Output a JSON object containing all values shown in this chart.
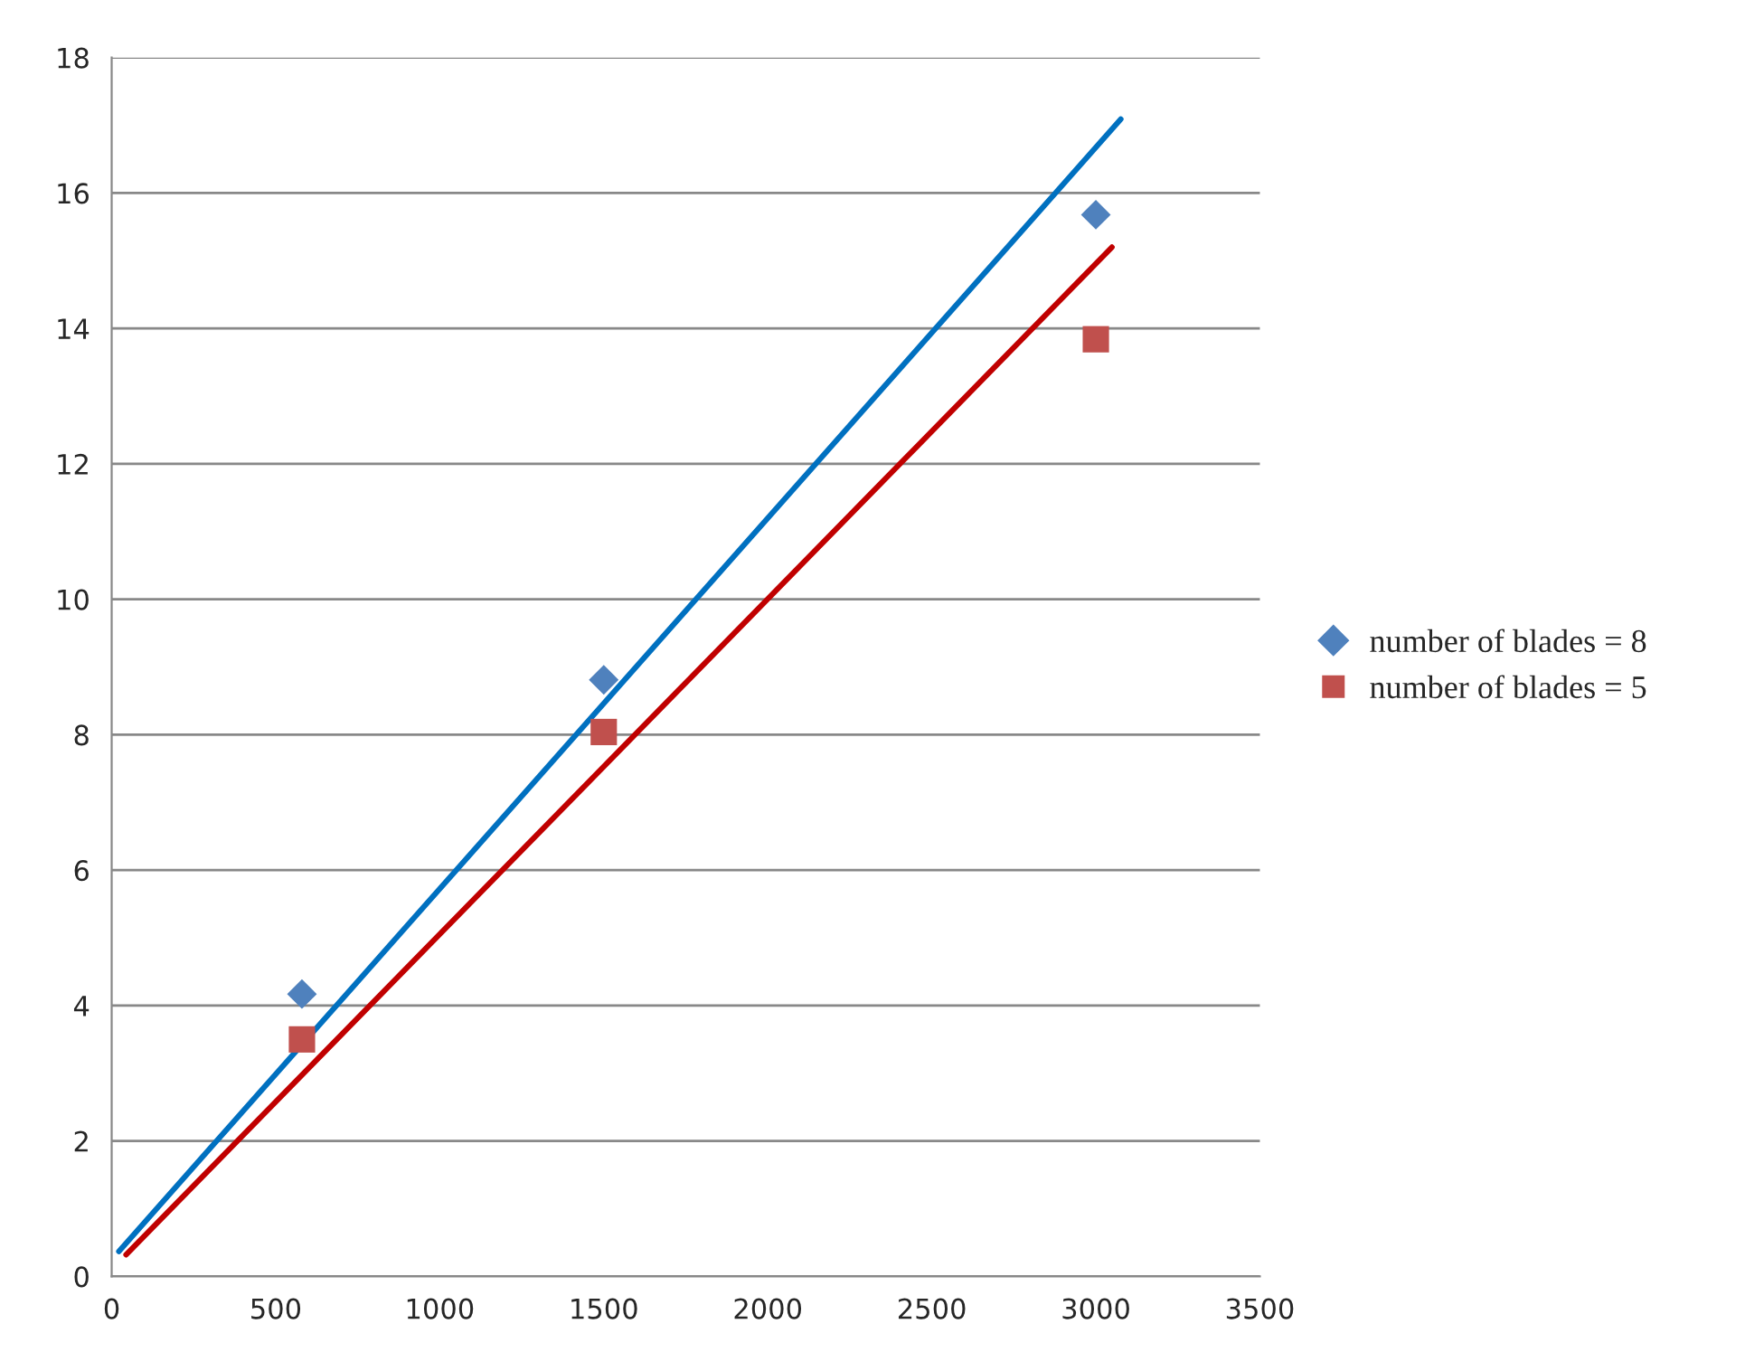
{
  "chart_data": {
    "type": "scatter",
    "series": [
      {
        "name": "number of blades = 8",
        "marker": "diamond",
        "color": "#4f81bd",
        "x": [
          580,
          1500,
          3000
        ],
        "values": [
          4.17,
          8.81,
          15.68
        ]
      },
      {
        "name": "number of blades = 5",
        "marker": "square",
        "color": "#c0504d",
        "x": [
          580,
          1500,
          3000
        ],
        "values": [
          3.5,
          8.04,
          13.84
        ]
      },
      {
        "type": "line",
        "marker": "none",
        "line_style": "solid",
        "color": "#0070c0",
        "x": [
          22,
          3076
        ],
        "values": [
          0.37,
          17.09
        ]
      },
      {
        "type": "line",
        "marker": "none",
        "line_style": "solid",
        "color": "#c00000",
        "x": [
          44,
          3049
        ],
        "values": [
          0.32,
          15.2
        ]
      }
    ],
    "xlim": [
      0,
      3500
    ],
    "xticks": [
      0,
      500,
      1000,
      1500,
      2000,
      2500,
      3000,
      3500
    ],
    "ylim": [
      0,
      18
    ],
    "yticks": [
      0,
      2,
      4,
      6,
      8,
      10,
      12,
      14,
      16,
      18
    ],
    "grid": "y",
    "legend": "right"
  }
}
